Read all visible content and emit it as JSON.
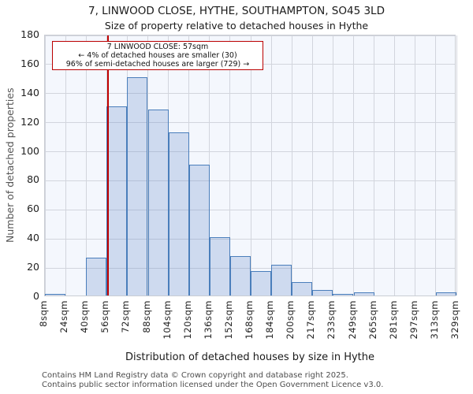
{
  "title": "7, LINWOOD CLOSE, HYTHE, SOUTHAMPTON, SO45 3LD",
  "subtitle": "Size of property relative to detached houses in Hythe",
  "annotation": {
    "line1": "7 LINWOOD CLOSE: 57sqm",
    "line2": "← 4% of detached houses are smaller (30)",
    "line3": "96% of semi-detached houses are larger (729) →"
  },
  "chart_data": {
    "type": "bar",
    "title": "7, LINWOOD CLOSE, HYTHE, SOUTHAMPTON, SO45 3LD — Size of property relative to detached houses in Hythe",
    "xlabel": "Distribution of detached houses by size in Hythe",
    "ylabel": "Number of detached properties",
    "x_tick_labels": [
      "8sqm",
      "24sqm",
      "40sqm",
      "56sqm",
      "72sqm",
      "88sqm",
      "104sqm",
      "120sqm",
      "136sqm",
      "152sqm",
      "168sqm",
      "184sqm",
      "200sqm",
      "217sqm",
      "233sqm",
      "249sqm",
      "265sqm",
      "281sqm",
      "297sqm",
      "313sqm",
      "329sqm"
    ],
    "bin_edges_sqm": [
      8,
      24,
      40,
      56,
      72,
      88,
      104,
      120,
      136,
      152,
      168,
      184,
      200,
      217,
      233,
      249,
      265,
      281,
      297,
      313,
      329
    ],
    "values": [
      1,
      0,
      26,
      130,
      150,
      128,
      112,
      90,
      40,
      27,
      17,
      21,
      9,
      4,
      1,
      2,
      0,
      0,
      0,
      2
    ],
    "y_ticks": [
      0,
      20,
      40,
      60,
      80,
      100,
      120,
      140,
      160,
      180
    ],
    "ylim": [
      0,
      180
    ],
    "xlim_sqm": [
      8,
      329
    ],
    "grid": true,
    "legend": "none",
    "marker_value_sqm": 57
  },
  "colors": {
    "bar_fill": "#d9e4f4",
    "bar_border": "#4a7ebb",
    "marker_line": "#c00000",
    "annotation_border": "#bb0000",
    "plot_background": "#f4f7fd",
    "gridline": "#d2d5dd",
    "footer_text": "#4d4d4d"
  },
  "footer": {
    "line1": "Contains HM Land Registry data © Crown copyright and database right 2025.",
    "line2": "Contains public sector information licensed under the Open Government Licence v3.0."
  }
}
